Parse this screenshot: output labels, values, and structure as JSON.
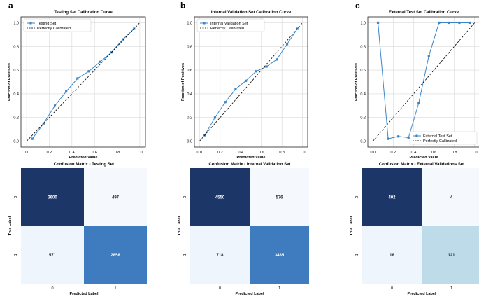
{
  "chart_data": [
    {
      "type": "line",
      "panel_letter": "a",
      "title": "Testing Set Calibration Curve",
      "xlabel": "Predicted Value",
      "ylabel": "Fraction of Positives",
      "xlim": [
        -0.05,
        1.05
      ],
      "ylim": [
        -0.05,
        1.05
      ],
      "ticks": {
        "x": [
          "0.0",
          "0.2",
          "0.4",
          "0.6",
          "0.8",
          "1.0"
        ],
        "y": [
          "0.0",
          "0.2",
          "0.4",
          "0.6",
          "0.8",
          "1.0"
        ],
        "values": [
          0,
          0.2,
          0.4,
          0.6,
          0.8,
          1.0
        ]
      },
      "grid": true,
      "legend": "top-left",
      "series": [
        {
          "name": "Testing Set",
          "style": "line-marker",
          "color": "#3d86c6",
          "x": [
            0.05,
            0.15,
            0.25,
            0.35,
            0.45,
            0.55,
            0.65,
            0.75,
            0.85,
            0.95
          ],
          "y": [
            0.02,
            0.15,
            0.3,
            0.42,
            0.53,
            0.59,
            0.67,
            0.75,
            0.86,
            0.95
          ]
        },
        {
          "name": "Perfectly Calibrated",
          "style": "dashed",
          "color": "#000000",
          "x": [
            0,
            1
          ],
          "y": [
            0,
            1
          ]
        }
      ]
    },
    {
      "type": "line",
      "panel_letter": "b",
      "title": "Internal Validation Set Calibration Curve",
      "xlabel": "Predicted Value",
      "ylabel": "Fraction of Positives",
      "xlim": [
        -0.05,
        1.05
      ],
      "ylim": [
        -0.05,
        1.05
      ],
      "ticks": {
        "x": [
          "0.0",
          "0.2",
          "0.4",
          "0.6",
          "0.8",
          "1.0"
        ],
        "y": [
          "0.0",
          "0.2",
          "0.4",
          "0.6",
          "0.8",
          "1.0"
        ],
        "values": [
          0,
          0.2,
          0.4,
          0.6,
          0.8,
          1.0
        ]
      },
      "grid": true,
      "legend": "top-left",
      "series": [
        {
          "name": "Internal Validation Set",
          "style": "line-marker",
          "color": "#3d86c6",
          "x": [
            0.05,
            0.15,
            0.25,
            0.35,
            0.45,
            0.55,
            0.65,
            0.75,
            0.85,
            0.95
          ],
          "y": [
            0.05,
            0.2,
            0.33,
            0.44,
            0.51,
            0.59,
            0.63,
            0.69,
            0.82,
            0.95
          ]
        },
        {
          "name": "Perfectly Calibrated",
          "style": "dashed",
          "color": "#000000",
          "x": [
            0,
            1
          ],
          "y": [
            0,
            1
          ]
        }
      ]
    },
    {
      "type": "line",
      "panel_letter": "c",
      "title": "External Test Set Calibration Curve",
      "xlabel": "Predicted Value",
      "ylabel": "Fraction of Positives",
      "xlim": [
        -0.05,
        1.05
      ],
      "ylim": [
        -0.05,
        1.05
      ],
      "ticks": {
        "x": [
          "0.0",
          "0.2",
          "0.4",
          "0.6",
          "0.8",
          "1.0"
        ],
        "y": [
          "0.0",
          "0.2",
          "0.4",
          "0.6",
          "0.8",
          "1.0"
        ],
        "values": [
          0,
          0.2,
          0.4,
          0.6,
          0.8,
          1.0
        ]
      },
      "grid": true,
      "legend": "bottom-right",
      "series": [
        {
          "name": "External Test Set",
          "style": "line-marker",
          "color": "#3d86c6",
          "x": [
            0.05,
            0.15,
            0.25,
            0.35,
            0.45,
            0.55,
            0.65,
            0.75,
            0.85,
            0.95
          ],
          "y": [
            1.0,
            0.02,
            0.04,
            0.03,
            0.32,
            0.72,
            1.0,
            1.0,
            1.0,
            1.0
          ]
        },
        {
          "name": "Perfectly Calibrated",
          "style": "dashed",
          "color": "#000000",
          "x": [
            0,
            1
          ],
          "y": [
            0,
            1
          ]
        }
      ]
    },
    {
      "type": "heatmap",
      "title": "Confusion Matrix - Testing Set",
      "xlabel": "Predicted Label",
      "ylabel": "True Label",
      "x_ticks": [
        "0",
        "1"
      ],
      "y_ticks": [
        "0",
        "1"
      ],
      "values": [
        [
          3600,
          497
        ],
        [
          571,
          2858
        ]
      ],
      "colors": [
        [
          "#1c3668",
          "#f5f9fe"
        ],
        [
          "#eef5fc",
          "#3e7bbf"
        ]
      ]
    },
    {
      "type": "heatmap",
      "title": "Confusion Matrix - Internal Validation Set",
      "xlabel": "Predicted Label",
      "ylabel": "True Label",
      "x_ticks": [
        "0",
        "1"
      ],
      "y_ticks": [
        "0",
        "1"
      ],
      "values": [
        [
          4550,
          576
        ],
        [
          718,
          3485
        ]
      ],
      "colors": [
        [
          "#1c3668",
          "#f5f9fe"
        ],
        [
          "#eef5fc",
          "#3e7bbf"
        ]
      ]
    },
    {
      "type": "heatmap",
      "title": "Confusion Matrix - External Validations Set",
      "xlabel": "Predicted Label",
      "ylabel": "True Label",
      "x_ticks": [
        "0",
        "1"
      ],
      "y_ticks": [
        "0",
        "1"
      ],
      "values": [
        [
          402,
          4
        ],
        [
          18,
          121
        ]
      ],
      "colors": [
        [
          "#1c3668",
          "#f5f9fe"
        ],
        [
          "#eef5fc",
          "#bedbe9"
        ]
      ]
    }
  ]
}
